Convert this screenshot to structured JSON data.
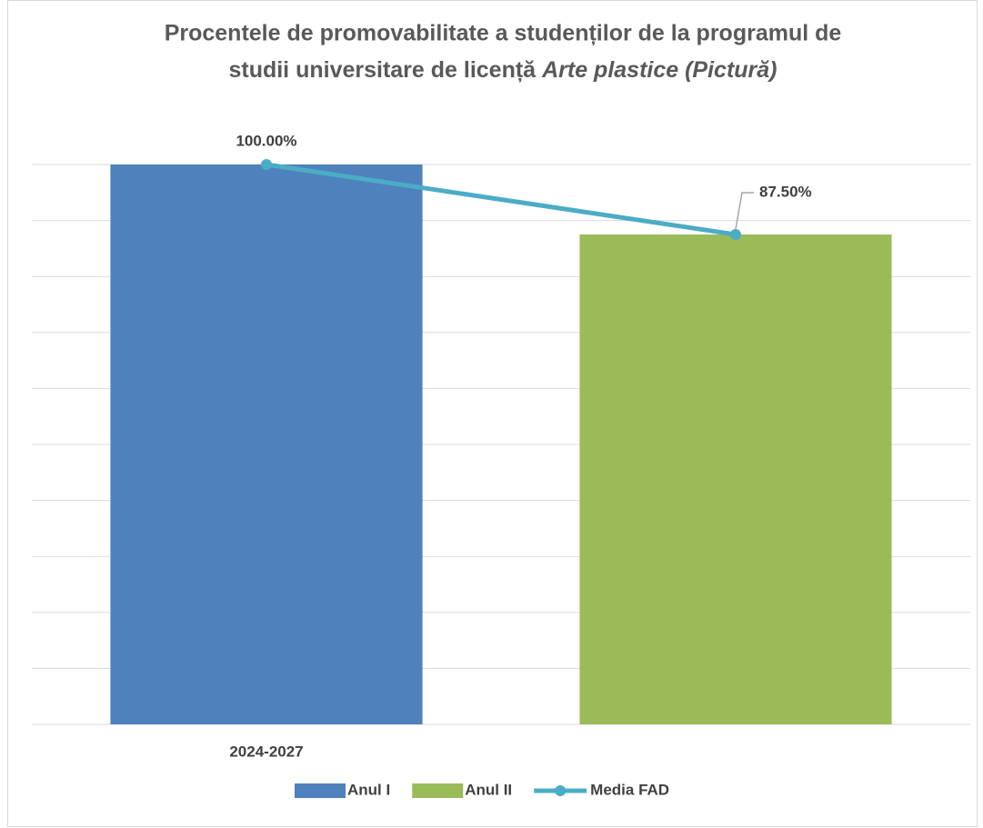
{
  "chart_data": {
    "type": "bar",
    "title": [
      "Procentele de promovabilitate a studenților de la programul de",
      "studii universitare de licență"
    ],
    "title_emphasis": "Arte plastice (Pictură)",
    "categories": [
      "2024-2027",
      null
    ],
    "ylim": [
      0,
      100
    ],
    "yticks": [
      0,
      10,
      20,
      30,
      40,
      50,
      60,
      70,
      80,
      90,
      100
    ],
    "grid": true,
    "legend": "bottom",
    "series": [
      {
        "name": "Anul I",
        "type": "bar",
        "color": "#4f81bd",
        "values": [
          100,
          null
        ]
      },
      {
        "name": "Anul II",
        "type": "bar",
        "color": "#9bbb59",
        "values": [
          null,
          87.5
        ]
      },
      {
        "name": "Media FAD",
        "type": "line",
        "color": "#4bacc6",
        "values": [
          100,
          87.5
        ],
        "value_labels": [
          "100.00%",
          "87.50%"
        ]
      }
    ]
  }
}
